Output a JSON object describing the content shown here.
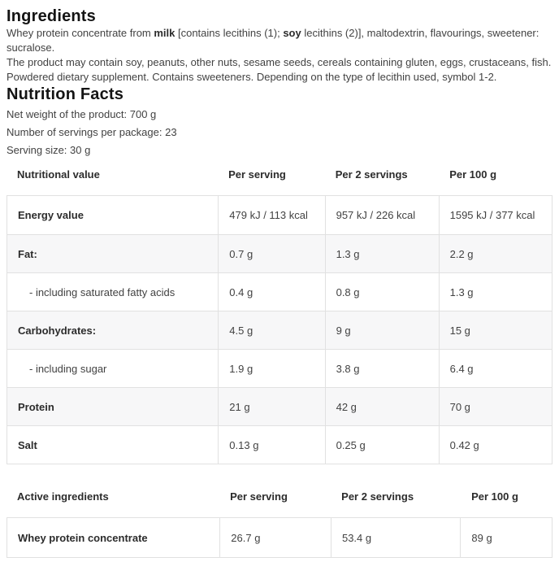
{
  "ingredients": {
    "title": "Ingredients",
    "composition": {
      "t1": "Whey protein concentrate from ",
      "b1": "milk",
      "t2": " [contains lecithins (1); ",
      "b2": "soy",
      "t3": " lecithins (2)], maltodextrin, flavourings, sweetener: sucralose."
    },
    "allergen_note": "The product may contain soy, peanuts, other nuts, sesame seeds, cereals containing gluten, eggs, crustaceans, fish.",
    "supplement_note": "Powdered dietary supplement. Contains sweeteners. Depending on the type of lecithin used, symbol 1-2."
  },
  "nutrition": {
    "title": "Nutrition Facts",
    "net_weight": "Net weight of the product: 700 g",
    "servings_per_package": "Number of servings per package: 23",
    "serving_size": "Serving size: 30 g",
    "table": {
      "headers": [
        "Nutritional value",
        "Per serving",
        "Per 2 servings",
        "Per 100 g"
      ],
      "rows": [
        {
          "label": "Energy value",
          "per_serving": "479 kJ / 113 kcal",
          "per_2_servings": "957 kJ / 226 kcal",
          "per_100_g": "1595 kJ / 377 kcal"
        },
        {
          "label": "Fat:",
          "per_serving": "0.7 g",
          "per_2_servings": "1.3 g",
          "per_100_g": "2.2 g"
        },
        {
          "label": "- including saturated fatty acids",
          "per_serving": "0.4 g",
          "per_2_servings": "0.8 g",
          "per_100_g": "1.3 g"
        },
        {
          "label": "Carbohydrates:",
          "per_serving": "4.5 g",
          "per_2_servings": "9 g",
          "per_100_g": "15 g"
        },
        {
          "label": "- including sugar",
          "per_serving": "1.9 g",
          "per_2_servings": "3.8 g",
          "per_100_g": "6.4 g"
        },
        {
          "label": "Protein",
          "per_serving": "21 g",
          "per_2_servings": "42 g",
          "per_100_g": "70 g"
        },
        {
          "label": "Salt",
          "per_serving": "0.13 g",
          "per_2_servings": "0.25 g",
          "per_100_g": "0.42 g"
        }
      ]
    },
    "active_table": {
      "headers": [
        "Active ingredients",
        "Per serving",
        "Per 2 servings",
        "Per 100 g"
      ],
      "rows": [
        {
          "label": "Whey protein concentrate",
          "per_serving": "26.7 g",
          "per_2_servings": "53.4 g",
          "per_100_g": "89 g"
        }
      ]
    }
  }
}
